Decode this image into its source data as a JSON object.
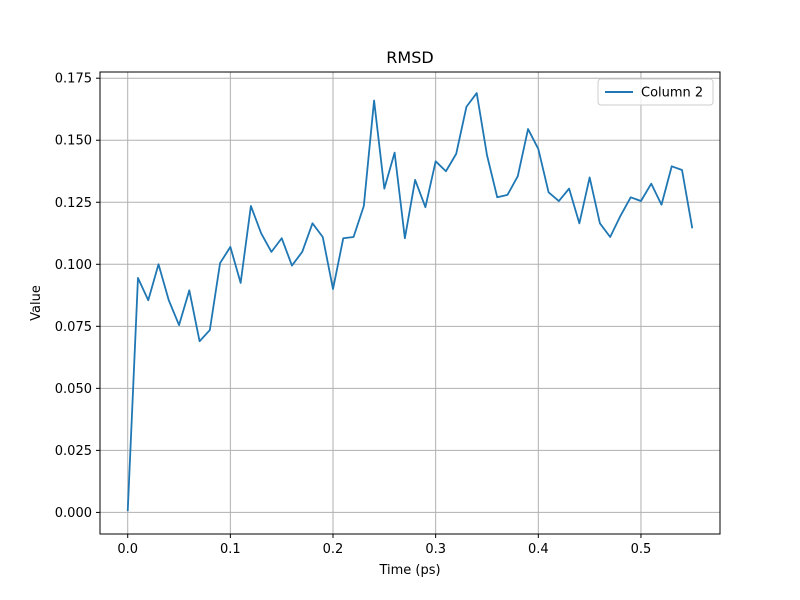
{
  "chart_data": {
    "type": "line",
    "title": "RMSD",
    "xlabel": "Time (ps)",
    "ylabel": "Value",
    "xlim": [
      -0.027,
      0.577
    ],
    "ylim": [
      -0.0087,
      0.1775
    ],
    "xticks": [
      0.0,
      0.1,
      0.2,
      0.3,
      0.4,
      0.5
    ],
    "xtick_labels": [
      "0.0",
      "0.1",
      "0.2",
      "0.3",
      "0.4",
      "0.5"
    ],
    "yticks": [
      0.0,
      0.025,
      0.05,
      0.075,
      0.1,
      0.125,
      0.15,
      0.175
    ],
    "ytick_labels": [
      "0.000",
      "0.025",
      "0.050",
      "0.075",
      "0.100",
      "0.125",
      "0.150",
      "0.175"
    ],
    "grid": true,
    "legend_position": "top-right",
    "series": [
      {
        "name": "Column 2",
        "color": "#1f77b4",
        "x": [
          0.0,
          0.01,
          0.02,
          0.03,
          0.04,
          0.05,
          0.06,
          0.07,
          0.08,
          0.09,
          0.1,
          0.11,
          0.12,
          0.13,
          0.14,
          0.15,
          0.16,
          0.17,
          0.18,
          0.19,
          0.2,
          0.21,
          0.22,
          0.23,
          0.24,
          0.25,
          0.26,
          0.27,
          0.28,
          0.29,
          0.3,
          0.31,
          0.32,
          0.33,
          0.34,
          0.35,
          0.36,
          0.37,
          0.38,
          0.39,
          0.4,
          0.41,
          0.42,
          0.43,
          0.44,
          0.45,
          0.46,
          0.47,
          0.48,
          0.49,
          0.5,
          0.51,
          0.52,
          0.53,
          0.54,
          0.55
        ],
        "y": [
          0.0005,
          0.0945,
          0.0855,
          0.1,
          0.0855,
          0.0755,
          0.0895,
          0.069,
          0.0735,
          0.1005,
          0.107,
          0.0925,
          0.1235,
          0.1125,
          0.105,
          0.1105,
          0.0995,
          0.105,
          0.1165,
          0.111,
          0.09,
          0.1105,
          0.111,
          0.1235,
          0.166,
          0.1305,
          0.145,
          0.1105,
          0.134,
          0.123,
          0.1415,
          0.1375,
          0.1445,
          0.1635,
          0.169,
          0.144,
          0.127,
          0.128,
          0.1355,
          0.1545,
          0.1465,
          0.129,
          0.1255,
          0.1305,
          0.1165,
          0.135,
          0.1165,
          0.111,
          0.1195,
          0.127,
          0.1255,
          0.1325,
          0.124,
          0.1395,
          0.138,
          0.1145
        ]
      }
    ]
  }
}
